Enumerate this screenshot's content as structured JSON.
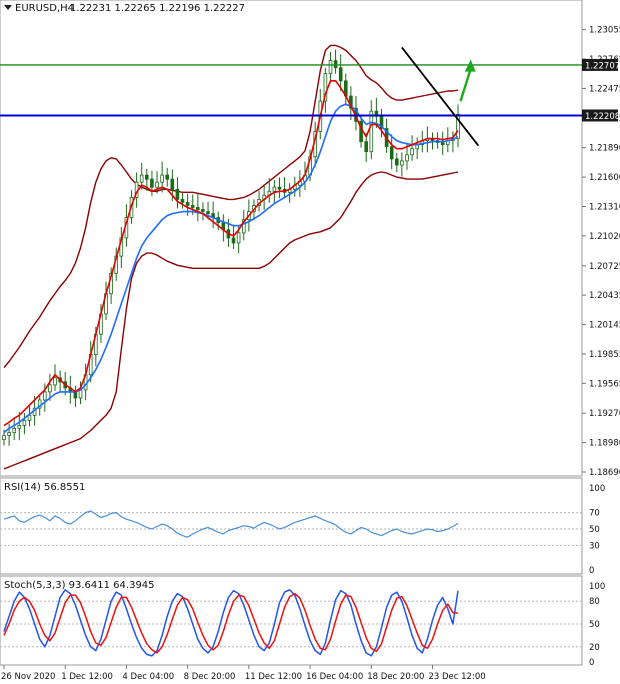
{
  "header": {
    "symbol": "EURUSD,H4",
    "ohlc": "1.22231 1.22265 1.22196 1.22227"
  },
  "colors": {
    "candle": "#1a6b1a",
    "red_ma": "#e60000",
    "blue_ma": "#1e6cff",
    "bands": "#8b0000",
    "trendline": "#000000",
    "hline_green": "#1a8c1a",
    "hline_blue": "#0000cc",
    "arrow": "#1fa81f",
    "rsi_line": "#4a90d9",
    "stoch_main": "#2255ee",
    "stoch_signal": "#ee1111",
    "tag_bg": "#1a1a1a"
  },
  "chart_data": [
    {
      "type": "candlestick",
      "title": "EURUSD,H4",
      "yticks": [
        "1.23055",
        "1.22765",
        "1.22475",
        "1.22185",
        "1.21890",
        "1.21600",
        "1.21310",
        "1.21020",
        "1.20725",
        "1.20435",
        "1.20145",
        "1.19855",
        "1.19565",
        "1.19270",
        "1.18980",
        "1.18690"
      ],
      "ylim": [
        1.1869,
        1.2317
      ],
      "xlabels": [
        "26 Nov 2020",
        "1 Dec 12:00",
        "4 Dec 04:00",
        "8 Dec 20:00",
        "11 Dec 12:00",
        "16 Dec 04:00",
        "18 Dec 20:00",
        "23 Dec 12:00"
      ],
      "price_levels": [
        {
          "value": 1.22707,
          "label": "1.22707",
          "style": "green"
        },
        {
          "value": 1.22208,
          "label": "1.22208",
          "style": "blue"
        }
      ],
      "trendline": {
        "x": [
          78,
          93
        ],
        "y": [
          1.2288,
          1.2191
        ]
      },
      "arrow": {
        "x": [
          89.5,
          91.5
        ],
        "y": [
          1.2235,
          1.2273
        ]
      },
      "series": [
        {
          "name": "close",
          "values": [
            1.1905,
            1.1908,
            1.1912,
            1.1915,
            1.192,
            1.1925,
            1.1932,
            1.194,
            1.1948,
            1.1955,
            1.1962,
            1.1958,
            1.1952,
            1.1948,
            1.1942,
            1.195,
            1.1965,
            1.1985,
            1.2005,
            1.2025,
            1.2045,
            1.2065,
            1.2082,
            1.21,
            1.212,
            1.214,
            1.2155,
            1.2162,
            1.2158,
            1.215,
            1.2155,
            1.2162,
            1.2158,
            1.2148,
            1.2138,
            1.2135,
            1.2132,
            1.213,
            1.2128,
            1.2126,
            1.2124,
            1.212,
            1.2115,
            1.2108,
            1.21,
            1.2095,
            1.2105,
            1.2118,
            1.2126,
            1.2132,
            1.2138,
            1.2142,
            1.2146,
            1.215,
            1.2148,
            1.2145,
            1.2148,
            1.2152,
            1.2156,
            1.2162,
            1.218,
            1.2205,
            1.2235,
            1.2262,
            1.2275,
            1.2268,
            1.2255,
            1.224,
            1.2228,
            1.2215,
            1.2195,
            1.2185,
            1.2225,
            1.222,
            1.2208,
            1.219,
            1.2178,
            1.2172,
            1.2176,
            1.2182,
            1.2188,
            1.2192,
            1.2196,
            1.2198,
            1.2196,
            1.2194,
            1.2192,
            1.2196,
            1.2198,
            1.2222
          ]
        },
        {
          "name": "moving average red",
          "values": [
            1.1915,
            1.1918,
            1.1922,
            1.1925,
            1.193,
            1.1935,
            1.194,
            1.1945,
            1.195,
            1.1958,
            1.1965,
            1.196,
            1.1955,
            1.1952,
            1.1948,
            1.1952,
            1.1965,
            1.1985,
            1.2005,
            1.2025,
            1.2045,
            1.2062,
            1.208,
            1.2098,
            1.2115,
            1.2132,
            1.2145,
            1.2152,
            1.215,
            1.2146,
            1.2148,
            1.215,
            1.2148,
            1.2142,
            1.2136,
            1.2133,
            1.213,
            1.2128,
            1.2126,
            1.2124,
            1.212,
            1.2116,
            1.2112,
            1.2108,
            1.2104,
            1.2102,
            1.2108,
            1.2116,
            1.2122,
            1.2128,
            1.2134,
            1.2138,
            1.2142,
            1.2145,
            1.2146,
            1.2146,
            1.2148,
            1.2152,
            1.2156,
            1.2162,
            1.2178,
            1.2198,
            1.222,
            1.2242,
            1.2255,
            1.2255,
            1.2248,
            1.224,
            1.223,
            1.222,
            1.2208,
            1.22,
            1.2212,
            1.2212,
            1.2206,
            1.2198,
            1.2192,
            1.2188,
            1.2188,
            1.219,
            1.2192,
            1.2194,
            1.2196,
            1.2198,
            1.2198,
            1.2198,
            1.2197,
            1.2198,
            1.2199,
            1.2206
          ]
        },
        {
          "name": "moving average blue",
          "values": [
            1.1908,
            1.1912,
            1.1915,
            1.1918,
            1.1922,
            1.1926,
            1.193,
            1.1934,
            1.1938,
            1.1942,
            1.1946,
            1.1948,
            1.1948,
            1.1948,
            1.1948,
            1.195,
            1.1955,
            1.1962,
            1.197,
            1.198,
            1.1992,
            1.2005,
            1.202,
            1.2035,
            1.205,
            1.2065,
            1.208,
            1.2092,
            1.21,
            1.2106,
            1.2112,
            1.2118,
            1.2122,
            1.2124,
            1.2125,
            1.2126,
            1.2126,
            1.2126,
            1.2125,
            1.2124,
            1.2122,
            1.212,
            1.2118,
            1.2116,
            1.2114,
            1.2112,
            1.2112,
            1.2114,
            1.2116,
            1.2119,
            1.2122,
            1.2126,
            1.213,
            1.2134,
            1.2137,
            1.214,
            1.2143,
            1.2146,
            1.215,
            1.2155,
            1.2162,
            1.2172,
            1.2185,
            1.22,
            1.2215,
            1.2225,
            1.223,
            1.2232,
            1.223,
            1.2226,
            1.2218,
            1.2212,
            1.2214,
            1.2213,
            1.221,
            1.2205,
            1.22,
            1.2196,
            1.2194,
            1.2193,
            1.2192,
            1.2192,
            1.2193,
            1.2194,
            1.2195,
            1.2195,
            1.2195,
            1.2196,
            1.2197,
            1.22
          ]
        },
        {
          "name": "bollinger upper",
          "values": [
            1.1972,
            1.1978,
            1.1985,
            1.1992,
            1.2,
            1.2008,
            1.2015,
            1.2022,
            1.203,
            1.2038,
            1.2045,
            1.2052,
            1.2058,
            1.2065,
            1.2075,
            1.209,
            1.211,
            1.2135,
            1.2155,
            1.2168,
            1.2176,
            1.2179,
            1.2178,
            1.2172,
            1.2165,
            1.2158,
            1.2153,
            1.215,
            1.2148,
            1.2146,
            1.2146,
            1.2148,
            1.2148,
            1.2147,
            1.2146,
            1.2145,
            1.2145,
            1.2145,
            1.2144,
            1.2143,
            1.2142,
            1.2141,
            1.214,
            1.2139,
            1.2138,
            1.2138,
            1.2139,
            1.214,
            1.2142,
            1.2145,
            1.2148,
            1.2152,
            1.2156,
            1.216,
            1.2164,
            1.2168,
            1.2172,
            1.2176,
            1.218,
            1.2186,
            1.2205,
            1.2235,
            1.2265,
            1.2285,
            1.229,
            1.229,
            1.2288,
            1.2285,
            1.228,
            1.2275,
            1.2268,
            1.226,
            1.2256,
            1.2253,
            1.2248,
            1.2242,
            1.2238,
            1.2236,
            1.2236,
            1.2237,
            1.2238,
            1.2239,
            1.224,
            1.2241,
            1.2242,
            1.2243,
            1.2244,
            1.2245,
            1.2245,
            1.2246
          ]
        },
        {
          "name": "bollinger lower",
          "values": [
            1.1872,
            1.1874,
            1.1876,
            1.1878,
            1.188,
            1.1882,
            1.1884,
            1.1886,
            1.1888,
            1.189,
            1.1892,
            1.1894,
            1.1896,
            1.1898,
            1.19,
            1.1902,
            1.1906,
            1.191,
            1.1915,
            1.192,
            1.1925,
            1.1932,
            1.1948,
            1.199,
            1.203,
            1.206,
            1.2075,
            1.2082,
            1.2085,
            1.2085,
            1.2083,
            1.208,
            1.2077,
            1.2075,
            1.2073,
            1.2072,
            1.2071,
            1.207,
            1.207,
            1.207,
            1.207,
            1.207,
            1.207,
            1.207,
            1.207,
            1.207,
            1.207,
            1.207,
            1.207,
            1.207,
            1.207,
            1.2072,
            1.2075,
            1.208,
            1.2085,
            1.209,
            1.2095,
            1.2098,
            1.21,
            1.2102,
            1.2104,
            1.2105,
            1.2106,
            1.2108,
            1.211,
            1.2115,
            1.212,
            1.2128,
            1.2136,
            1.2145,
            1.2152,
            1.2158,
            1.2162,
            1.2164,
            1.2165,
            1.2164,
            1.2162,
            1.216,
            1.2159,
            1.2158,
            1.2158,
            1.2158,
            1.2158,
            1.2159,
            1.216,
            1.2161,
            1.2162,
            1.2163,
            1.2164,
            1.2165
          ]
        }
      ]
    },
    {
      "type": "line",
      "title": "RSI(14) 56.8551",
      "ylim": [
        0,
        100
      ],
      "yticks": [
        "100",
        "70",
        "50",
        "30",
        "0"
      ],
      "levels": [
        70,
        50,
        30
      ],
      "series": [
        {
          "name": "RSI(14)",
          "values": [
            62,
            64,
            66,
            60,
            58,
            62,
            65,
            67,
            64,
            60,
            66,
            63,
            58,
            56,
            60,
            65,
            70,
            72,
            68,
            64,
            66,
            69,
            70,
            65,
            62,
            60,
            58,
            55,
            52,
            50,
            53,
            56,
            54,
            50,
            45,
            42,
            40,
            44,
            47,
            50,
            52,
            49,
            46,
            44,
            48,
            50,
            52,
            54,
            53,
            51,
            55,
            58,
            56,
            53,
            50,
            52,
            55,
            58,
            60,
            62,
            64,
            66,
            63,
            60,
            58,
            55,
            50,
            46,
            44,
            48,
            52,
            50,
            46,
            44,
            42,
            45,
            48,
            50,
            47,
            45,
            44,
            46,
            48,
            50,
            49,
            47,
            48,
            50,
            53,
            56.8551
          ]
        }
      ]
    },
    {
      "type": "line",
      "title": "Stoch(5,3,3) 93.6411 64.3945",
      "ylim": [
        0,
        100
      ],
      "yticks": [
        "100",
        "80",
        "50",
        "20",
        "0"
      ],
      "levels": [
        80,
        50,
        20
      ],
      "series": [
        {
          "name": "main",
          "values": [
            40,
            60,
            80,
            92,
            85,
            70,
            50,
            30,
            20,
            35,
            60,
            85,
            95,
            90,
            75,
            55,
            35,
            20,
            15,
            30,
            55,
            80,
            92,
            88,
            70,
            50,
            32,
            18,
            10,
            8,
            15,
            35,
            60,
            80,
            90,
            86,
            70,
            50,
            30,
            18,
            12,
            20,
            40,
            65,
            85,
            94,
            90,
            75,
            55,
            35,
            20,
            15,
            25,
            50,
            78,
            92,
            95,
            88,
            70,
            48,
            28,
            15,
            10,
            25,
            55,
            82,
            94,
            90,
            75,
            50,
            28,
            12,
            8,
            20,
            45,
            72,
            88,
            92,
            80,
            58,
            35,
            18,
            12,
            30,
            55,
            75,
            85,
            70,
            50,
            93.6411
          ]
        },
        {
          "name": "signal",
          "values": [
            35,
            50,
            68,
            80,
            85,
            80,
            68,
            50,
            35,
            28,
            38,
            58,
            78,
            88,
            88,
            78,
            60,
            40,
            25,
            22,
            32,
            52,
            72,
            85,
            85,
            72,
            55,
            38,
            24,
            16,
            12,
            20,
            36,
            56,
            75,
            85,
            82,
            70,
            52,
            35,
            22,
            16,
            22,
            40,
            62,
            80,
            88,
            86,
            74,
            56,
            38,
            25,
            18,
            28,
            50,
            72,
            86,
            90,
            84,
            68,
            48,
            30,
            18,
            16,
            30,
            54,
            76,
            88,
            86,
            72,
            52,
            32,
            18,
            14,
            24,
            46,
            68,
            84,
            86,
            74,
            56,
            38,
            22,
            18,
            30,
            50,
            68,
            76,
            65,
            64.3945
          ]
        }
      ]
    }
  ]
}
